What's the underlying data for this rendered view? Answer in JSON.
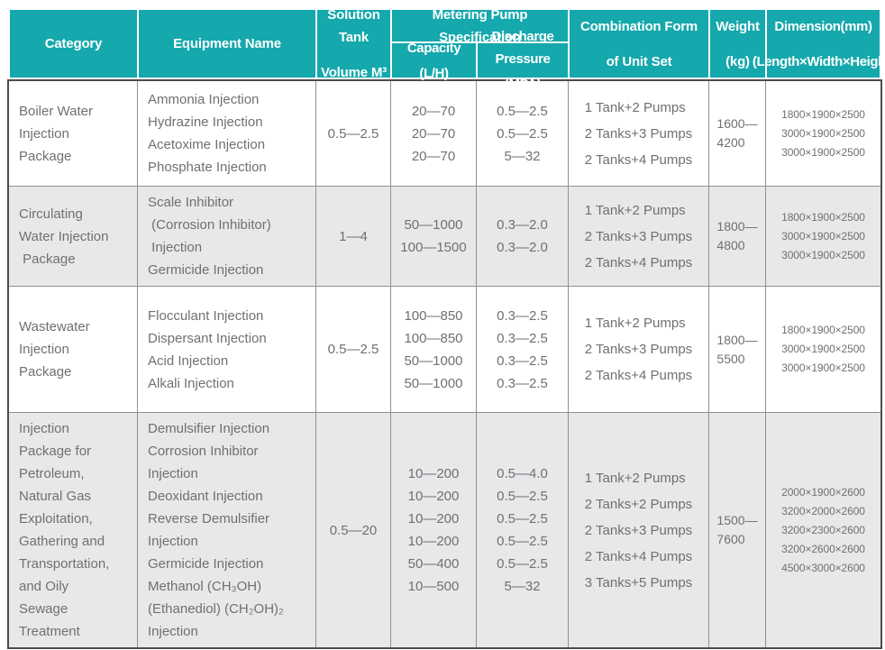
{
  "colors": {
    "header_teal": "#15A8AC",
    "row_alt": "#E7E8E9",
    "body_text": "#6F7072",
    "grid_line": "#8F9091",
    "outer_border": "#4D4D4F",
    "header_text": "#FFFFFF"
  },
  "table": {
    "header": {
      "category": "Category",
      "equipment": "Equipment Name",
      "tank_lines": [
        "Solution Tank",
        "Volume M³"
      ],
      "pump_spec": "Metering Pump Specification",
      "capacity_lines": [
        "Capacity",
        "(L/H)"
      ],
      "pressure_lines": [
        "Discharge Pressure",
        "(MPA)"
      ],
      "combination_lines": [
        "Combination Form",
        "of Unit Set"
      ],
      "weight_lines": [
        "Weight",
        "(kg)"
      ],
      "dimension_lines": [
        "Dimension(mm)",
        "(Length×Width×Height)"
      ]
    },
    "rows": [
      {
        "category_lines": [
          "Boiler Water",
          "Injection",
          "Package"
        ],
        "equipment_lines": [
          "Ammonia Injection",
          "Hydrazine Injection",
          "Acetoxime Injection",
          "Phosphate Injection"
        ],
        "tank": "0.5—2.5",
        "capacity_lines": [
          "20—70",
          "20—70",
          "20—70"
        ],
        "pressure_lines": [
          "0.5—2.5",
          "0.5—2.5",
          "5—32"
        ],
        "combination_lines": [
          "1 Tank+2 Pumps",
          "2 Tanks+3 Pumps",
          "2 Tanks+4 Pumps"
        ],
        "weight_lines": [
          "1600—",
          "4200"
        ],
        "dimension_lines": [
          "1800×1900×2500",
          "3000×1900×2500",
          "3000×1900×2500"
        ]
      },
      {
        "category_lines": [
          "Circulating",
          "Water Injection",
          " Package"
        ],
        "equipment_lines": [
          "Scale Inhibitor",
          " (Corrosion Inhibitor)",
          " Injection",
          "Germicide Injection"
        ],
        "tank": "1—4",
        "capacity_lines": [
          "50—1000",
          "100—1500"
        ],
        "pressure_lines": [
          "0.3—2.0",
          "0.3—2.0"
        ],
        "combination_lines": [
          "1 Tank+2 Pumps",
          "2 Tanks+3 Pumps",
          "2 Tanks+4 Pumps"
        ],
        "weight_lines": [
          "1800—",
          "4800"
        ],
        "dimension_lines": [
          "1800×1900×2500",
          "3000×1900×2500",
          "3000×1900×2500"
        ]
      },
      {
        "category_lines": [
          "Wastewater",
          "Injection",
          "Package"
        ],
        "equipment_lines": [
          "Flocculant Injection",
          "Dispersant Injection",
          "Acid Injection",
          "Alkali Injection"
        ],
        "tank": "0.5—2.5",
        "capacity_lines": [
          "100—850",
          "100—850",
          "50—1000",
          "50—1000"
        ],
        "pressure_lines": [
          "0.3—2.5",
          "0.3—2.5",
          "0.3—2.5",
          "0.3—2.5"
        ],
        "combination_lines": [
          "1 Tank+2 Pumps",
          "2 Tanks+3 Pumps",
          "2 Tanks+4 Pumps"
        ],
        "weight_lines": [
          "1800—",
          "5500"
        ],
        "dimension_lines": [
          "1800×1900×2500",
          "3000×1900×2500",
          "3000×1900×2500"
        ]
      },
      {
        "category_lines": [
          "Injection",
          "Package for",
          "Petroleum,",
          "Natural Gas",
          "Exploitation,",
          "Gathering and",
          "Transportation,",
          "and Oily",
          "Sewage",
          "Treatment"
        ],
        "equipment_lines": [
          "Demulsifier Injection",
          "Corrosion Inhibitor",
          "Injection",
          "Deoxidant Injection",
          "Reverse Demulsifier",
          "Injection",
          "Germicide Injection",
          "Methanol (CH₃OH)",
          "(Ethanediol) (CH₂OH)₂",
          "Injection"
        ],
        "tank": "0.5—20",
        "capacity_lines": [
          "10—200",
          "10—200",
          "10—200",
          "10—200",
          "50—400",
          "10—500"
        ],
        "pressure_lines": [
          "0.5—4.0",
          "0.5—2.5",
          "0.5—2.5",
          "0.5—2.5",
          "0.5—2.5",
          "5—32"
        ],
        "combination_lines": [
          "1 Tank+2 Pumps",
          "2 Tanks+2 Pumps",
          "2 Tanks+3 Pumps",
          "2 Tanks+4 Pumps",
          "3 Tanks+5 Pumps"
        ],
        "weight_lines": [
          "1500—",
          "7600"
        ],
        "dimension_lines": [
          "2000×1900×2600",
          "3200×2000×2600",
          "3200×2300×2600",
          "3200×2600×2600",
          "4500×3000×2600"
        ]
      }
    ]
  }
}
